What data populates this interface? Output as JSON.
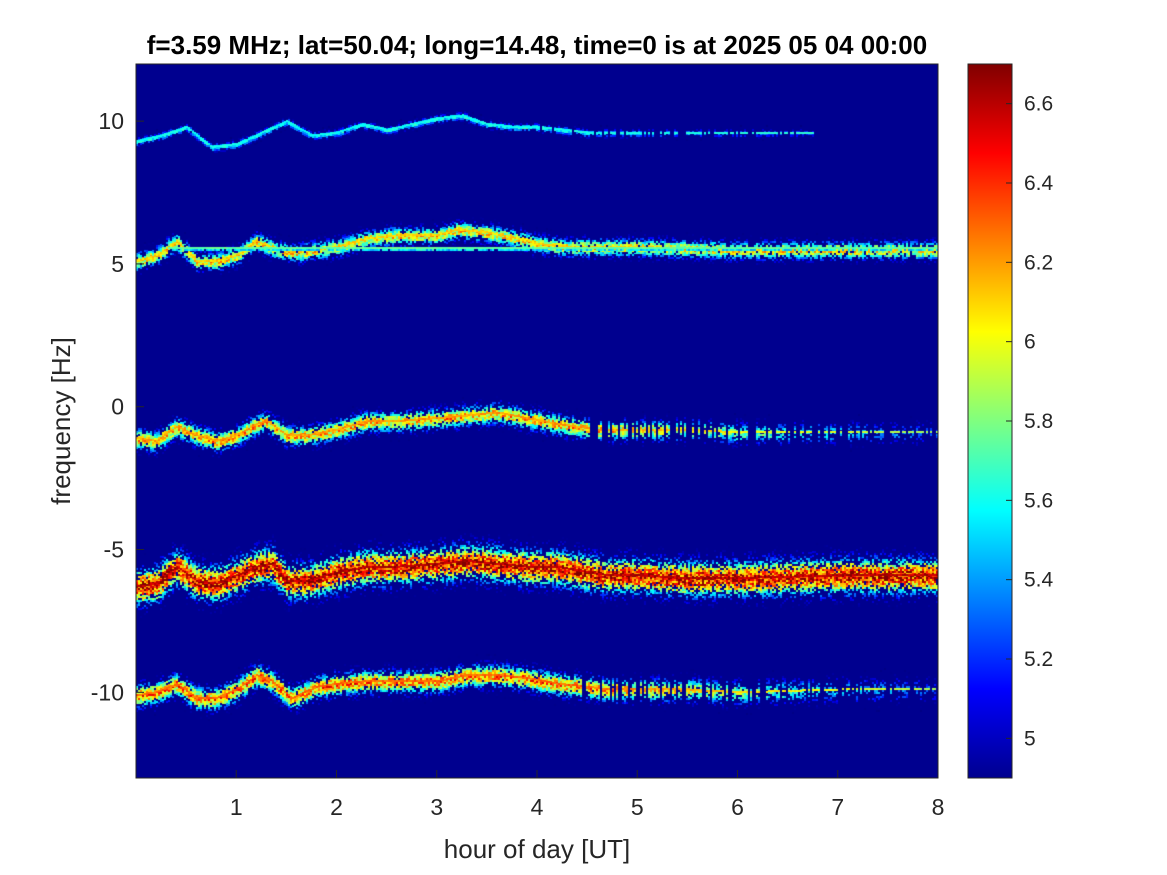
{
  "chart_data": {
    "type": "heatmap",
    "title": "f=3.59 MHz;  lat=50.04; long=14.48, time=0 is at 2025 05 04 00:00",
    "xlabel": "hour of day [UT]",
    "ylabel": "frequency [Hz]",
    "xlim": [
      0,
      8
    ],
    "ylim": [
      -13,
      12
    ],
    "xticks": [
      1,
      2,
      3,
      4,
      5,
      6,
      7,
      8
    ],
    "yticks": [
      -10,
      -5,
      0,
      5,
      10
    ],
    "colormap": "jet",
    "colorbar": {
      "range": [
        4.9,
        6.7
      ],
      "ticks": [
        5,
        5.2,
        5.4,
        5.6,
        5.8,
        6,
        6.2,
        6.4,
        6.6
      ],
      "tick_labels": [
        "5",
        "5.2",
        "5.4",
        "5.6",
        "5.8",
        "6",
        "6.2",
        "6.4",
        "6.6"
      ]
    },
    "background_value": 4.9,
    "traces": [
      {
        "intensity": 5.6,
        "spread": 0.15,
        "x": [
          0,
          0.25,
          0.5,
          0.75,
          1.0,
          1.25,
          1.5,
          1.75,
          2.0,
          2.25,
          2.5,
          2.75,
          3.0,
          3.25,
          3.5,
          3.75,
          4.0,
          4.5,
          5.0,
          5.5,
          6.0,
          6.5,
          6.75
        ],
        "y": [
          9.3,
          9.5,
          9.8,
          9.1,
          9.2,
          9.6,
          10.0,
          9.5,
          9.6,
          9.9,
          9.7,
          9.9,
          10.1,
          10.2,
          9.9,
          9.8,
          9.8,
          9.6,
          9.6,
          9.6,
          9.6,
          9.6,
          9.6
        ],
        "fade_from": 4.0
      },
      {
        "intensity": 6.1,
        "spread": 0.35,
        "x": [
          0,
          0.2,
          0.4,
          0.6,
          0.8,
          1.0,
          1.2,
          1.4,
          1.6,
          1.8,
          2.0,
          2.3,
          2.6,
          3.0,
          3.2,
          3.5,
          3.8,
          4.0,
          4.3,
          4.6,
          5.0,
          6.0,
          7.0,
          8.0
        ],
        "y": [
          5.1,
          5.3,
          5.8,
          5.1,
          5.1,
          5.3,
          5.8,
          5.5,
          5.4,
          5.5,
          5.6,
          5.9,
          6.0,
          6.0,
          6.2,
          6.1,
          5.9,
          5.7,
          5.6,
          5.6,
          5.6,
          5.5,
          5.5,
          5.5
        ]
      },
      {
        "intensity": 5.75,
        "spread": 0.03,
        "x": [
          0.3,
          8.0
        ],
        "y": [
          5.55,
          5.55
        ]
      },
      {
        "intensity": 6.2,
        "spread": 0.4,
        "x": [
          0,
          0.2,
          0.4,
          0.6,
          0.8,
          1.0,
          1.2,
          1.3,
          1.5,
          1.7,
          2.0,
          2.3,
          2.6,
          3.0,
          3.3,
          3.6,
          3.9,
          4.2,
          4.4,
          4.6,
          5.0,
          5.5,
          6.0,
          7.0,
          8.0
        ],
        "y": [
          -1.1,
          -1.2,
          -0.7,
          -1.0,
          -1.2,
          -1.0,
          -0.6,
          -0.5,
          -1.0,
          -1.0,
          -0.8,
          -0.5,
          -0.5,
          -0.4,
          -0.3,
          -0.2,
          -0.4,
          -0.6,
          -0.7,
          -0.8,
          -0.8,
          -0.8,
          -0.9,
          -0.9,
          -0.9
        ],
        "fade_from": 4.5
      },
      {
        "intensity": 6.6,
        "spread": 0.7,
        "x": [
          0,
          0.2,
          0.4,
          0.6,
          0.8,
          1.0,
          1.2,
          1.35,
          1.5,
          1.7,
          2.0,
          2.3,
          2.6,
          3.0,
          3.3,
          3.6,
          3.9,
          4.2,
          4.5,
          4.7,
          5.0,
          5.5,
          6.0,
          7.0,
          8.0
        ],
        "y": [
          -6.3,
          -6.2,
          -5.6,
          -6.1,
          -6.2,
          -5.9,
          -5.6,
          -5.5,
          -6.1,
          -6.1,
          -5.8,
          -5.6,
          -5.6,
          -5.5,
          -5.4,
          -5.5,
          -5.6,
          -5.6,
          -5.8,
          -5.9,
          -5.9,
          -6.0,
          -6.0,
          -5.9,
          -5.9
        ]
      },
      {
        "intensity": 6.3,
        "spread": 0.45,
        "x": [
          0,
          0.2,
          0.4,
          0.6,
          0.8,
          1.0,
          1.2,
          1.35,
          1.55,
          1.8,
          2.0,
          2.3,
          2.6,
          3.0,
          3.3,
          3.6,
          3.9,
          4.2,
          4.5,
          4.7,
          5.0,
          5.5,
          6.0,
          7.0,
          8.0
        ],
        "y": [
          -10.1,
          -10.0,
          -9.7,
          -10.2,
          -10.2,
          -9.9,
          -9.4,
          -9.6,
          -10.2,
          -9.8,
          -9.7,
          -9.6,
          -9.6,
          -9.6,
          -9.4,
          -9.4,
          -9.5,
          -9.7,
          -9.8,
          -9.9,
          -9.9,
          -9.9,
          -10.0,
          -9.9,
          -9.9
        ],
        "fade_from": 4.4
      }
    ]
  }
}
